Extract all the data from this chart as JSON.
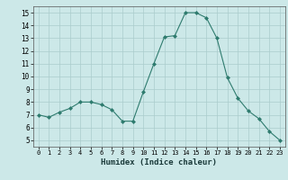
{
  "x": [
    0,
    1,
    2,
    3,
    4,
    5,
    6,
    7,
    8,
    9,
    10,
    11,
    12,
    13,
    14,
    15,
    16,
    17,
    18,
    19,
    20,
    21,
    22,
    23
  ],
  "y": [
    7.0,
    6.8,
    7.2,
    7.5,
    8.0,
    8.0,
    7.8,
    7.4,
    6.5,
    6.5,
    8.8,
    11.0,
    13.1,
    13.2,
    15.0,
    15.0,
    14.6,
    13.0,
    9.9,
    8.3,
    7.3,
    6.7,
    5.7,
    5.0
  ],
  "line_color": "#2e7b6e",
  "marker": "D",
  "marker_size": 2,
  "bg_color": "#cce8e8",
  "grid_color": "#aacccc",
  "xlabel": "Humidex (Indice chaleur)",
  "xlim": [
    -0.5,
    23.5
  ],
  "ylim": [
    4.5,
    15.5
  ],
  "yticks": [
    5,
    6,
    7,
    8,
    9,
    10,
    11,
    12,
    13,
    14,
    15
  ],
  "xticks": [
    0,
    1,
    2,
    3,
    4,
    5,
    6,
    7,
    8,
    9,
    10,
    11,
    12,
    13,
    14,
    15,
    16,
    17,
    18,
    19,
    20,
    21,
    22,
    23
  ]
}
